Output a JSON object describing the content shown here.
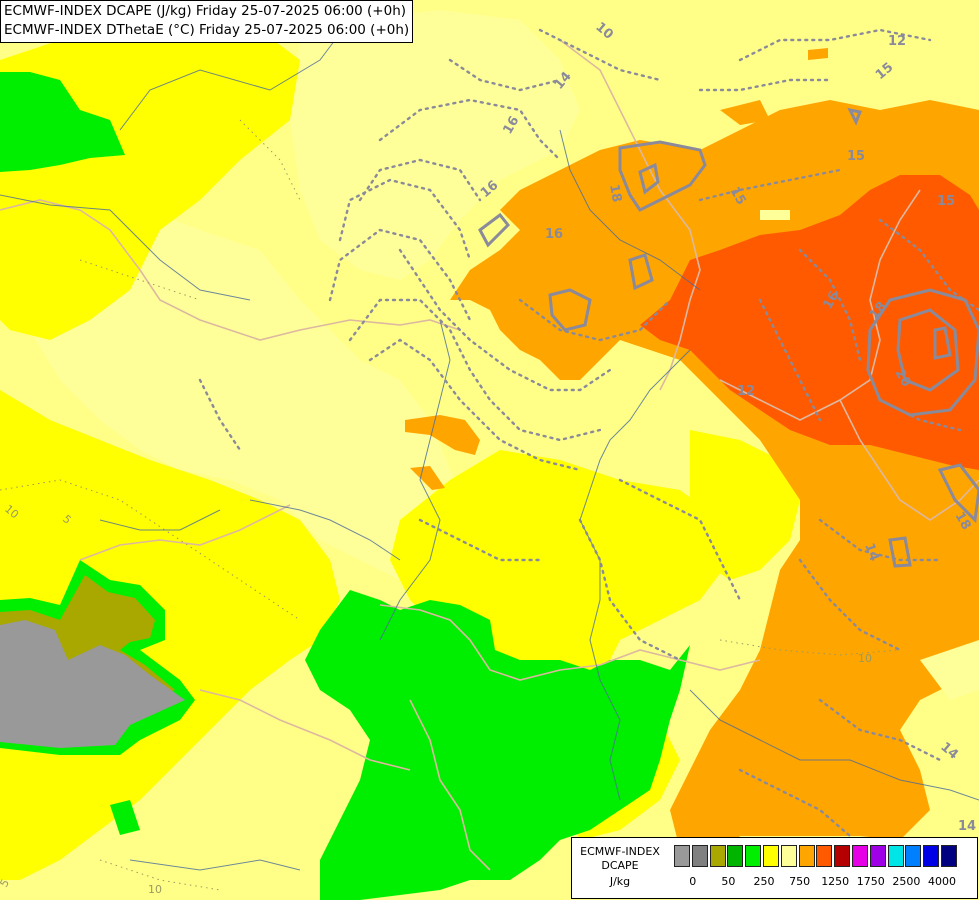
{
  "title": {
    "line1": "ECMWF-INDEX DCAPE (J/kg) Friday 25-07-2025 06:00 (+0h)",
    "line2": "ECMWF-INDEX DThetaE (°C) Friday 25-07-2025 06:00 (+0h)"
  },
  "legend": {
    "line1": "ECMWF-INDEX",
    "line2": "DCAPE",
    "line3": "J/kg",
    "colors": [
      "#999999",
      "#808080",
      "#a8a800",
      "#00b400",
      "#00ee00",
      "#ffff00",
      "#ffff99",
      "#ffa500",
      "#ff5a00",
      "#b40000",
      "#e600e6",
      "#a000e6",
      "#00e6e6",
      "#0080ff",
      "#0000e6",
      "#000080"
    ],
    "ticks": [
      "0",
      "50",
      "250",
      "750",
      "1250",
      "1750",
      "2500",
      "4000"
    ]
  },
  "contour_labels": [
    "10",
    "12",
    "14",
    "15",
    "16",
    "18",
    "20",
    "5"
  ]
}
